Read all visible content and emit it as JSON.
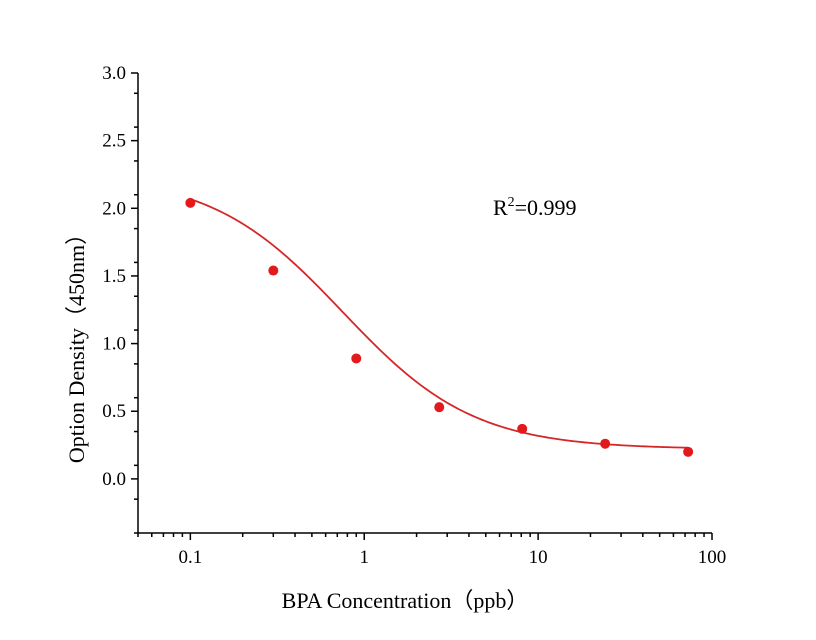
{
  "chart_data": {
    "type": "scatter",
    "xlabel": "BPA Concentration（ppb）",
    "ylabel": "Option Density（450nm）",
    "x_scale": "log",
    "xlim": [
      0.05,
      100
    ],
    "ylim": [
      -0.4,
      3.0
    ],
    "x_ticks": [
      0.1,
      1,
      10,
      100
    ],
    "x_tick_labels": [
      "0.1",
      "1",
      "10",
      "100"
    ],
    "y_ticks": [
      0.0,
      0.5,
      1.0,
      1.5,
      2.0,
      2.5,
      3.0
    ],
    "y_tick_labels": [
      "0.0",
      "0.5",
      "1.0",
      "1.5",
      "2.0",
      "2.5",
      "3.0"
    ],
    "grid": false,
    "series": [
      {
        "x": [
          0.1,
          0.3,
          0.9,
          2.7,
          8.1,
          24.3,
          72.9
        ],
        "y": [
          2.04,
          1.54,
          0.89,
          0.53,
          0.37,
          0.26,
          0.2
        ],
        "marker_color": "#e31a1c",
        "fit_color": "#d62728",
        "fit": {
          "model": "4PL",
          "top": 2.25,
          "bottom": 0.22,
          "ec50": 0.75,
          "hill": 1.15
        }
      }
    ],
    "annotation": {
      "r_label": "R",
      "r_sup": "2",
      "r_value": "=0.999",
      "at_x": 5.5,
      "at_y": 1.95
    }
  }
}
